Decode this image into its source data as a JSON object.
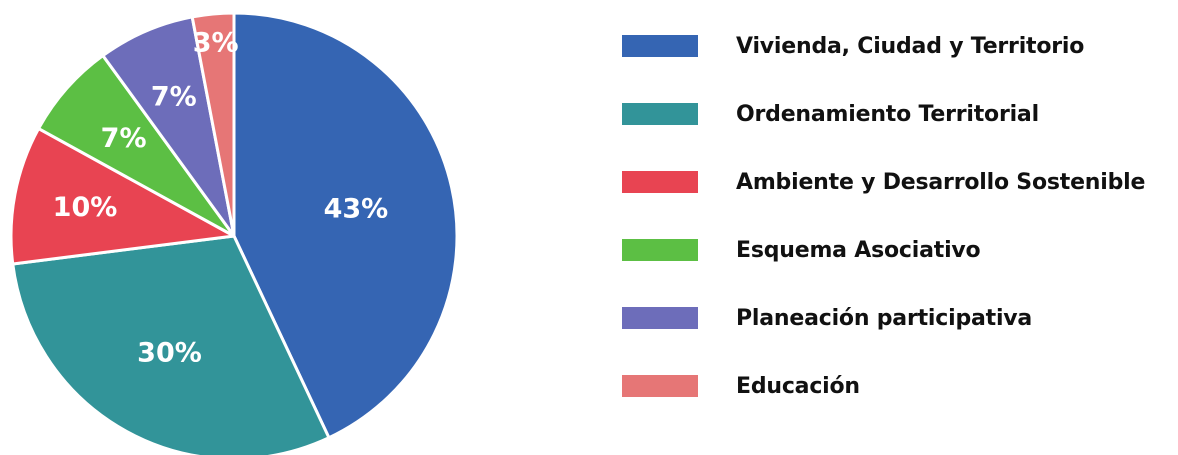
{
  "chart_data": {
    "type": "pie",
    "slices": [
      {
        "label": "Vivienda, Ciudad y Territorio",
        "value": 43,
        "display": "43%",
        "color": "#3565b3"
      },
      {
        "label": "Ordenamiento Territorial",
        "value": 30,
        "display": "30%",
        "color": "#329499"
      },
      {
        "label": "Ambiente y Desarrollo Sostenible",
        "value": 10,
        "display": "10%",
        "color": "#e84452"
      },
      {
        "label": "Esquema Asociativo",
        "value": 7,
        "display": "7%",
        "color": "#5cbf44"
      },
      {
        "label": "Planeación participativa",
        "value": 7,
        "display": "7%",
        "color": "#6d6dba"
      },
      {
        "label": "Educación",
        "value": 3,
        "display": "3%",
        "color": "#e67676"
      }
    ],
    "start_angle": "12 o'clock",
    "direction": "clockwise",
    "legend_position": "right"
  }
}
